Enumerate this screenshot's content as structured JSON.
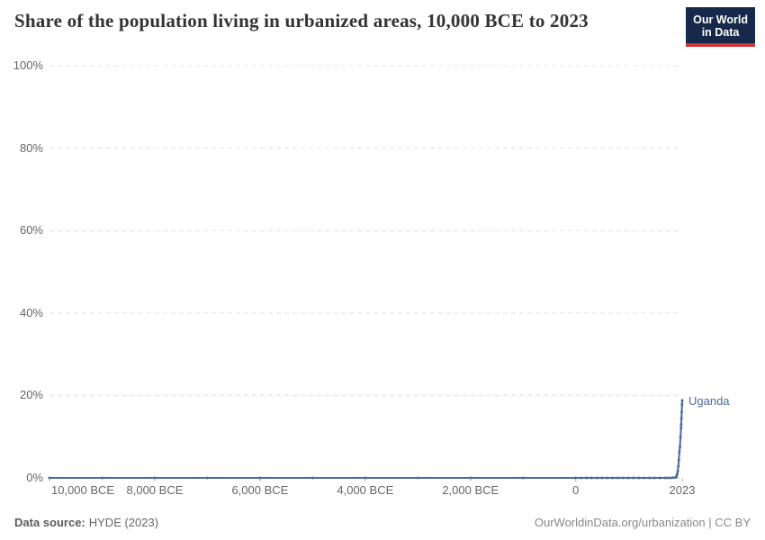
{
  "header": {
    "title": "Share of the population living in urbanized areas, 10,000 BCE to 2023",
    "logo_line1": "Our World",
    "logo_line2": "in Data"
  },
  "footer": {
    "source_label": "Data source:",
    "source_value": "HYDE (2023)",
    "credit": "OurWorldinData.org/urbanization | CC BY"
  },
  "colors": {
    "line": "#4C6A9C",
    "grid": "#e3e3e3",
    "zero_axis": "#bcbcbc",
    "tick": "#b8b8b8",
    "axis_text": "#666666",
    "title": "#333333",
    "logo_bg": "#17294a",
    "logo_red": "#cf3235"
  },
  "chart_data": {
    "type": "line",
    "title": "Share of the population living in urbanized areas, 10,000 BCE to 2023",
    "xlabel": "",
    "ylabel": "",
    "xlim": [
      -10000,
      2023
    ],
    "ylim": [
      0,
      100
    ],
    "grid": "horizontal-dashed",
    "legend_position": "end-of-line",
    "y_ticks": [
      {
        "value": 0,
        "label": "0%"
      },
      {
        "value": 20,
        "label": "20%"
      },
      {
        "value": 40,
        "label": "40%"
      },
      {
        "value": 60,
        "label": "60%"
      },
      {
        "value": 80,
        "label": "80%"
      },
      {
        "value": 100,
        "label": "100%"
      }
    ],
    "x_ticks": [
      {
        "value": -10000,
        "label": "10,000 BCE",
        "align": "left"
      },
      {
        "value": -8000,
        "label": "8,000 BCE",
        "align": "center"
      },
      {
        "value": -6000,
        "label": "6,000 BCE",
        "align": "center"
      },
      {
        "value": -4000,
        "label": "4,000 BCE",
        "align": "center"
      },
      {
        "value": -2000,
        "label": "2,000 BCE",
        "align": "center"
      },
      {
        "value": 0,
        "label": "0",
        "align": "center"
      },
      {
        "value": 2023,
        "label": "2023",
        "align": "center"
      }
    ],
    "series": [
      {
        "name": "Uganda",
        "color": "#4C6A9C",
        "points": [
          [
            -10000,
            0
          ],
          [
            -9000,
            0
          ],
          [
            -8000,
            0
          ],
          [
            -7000,
            0
          ],
          [
            -6000,
            0
          ],
          [
            -5000,
            0
          ],
          [
            -4000,
            0
          ],
          [
            -3000,
            0
          ],
          [
            -2000,
            0
          ],
          [
            -1000,
            0
          ],
          [
            0,
            0
          ],
          [
            100,
            0
          ],
          [
            200,
            0
          ],
          [
            300,
            0
          ],
          [
            400,
            0
          ],
          [
            500,
            0
          ],
          [
            600,
            0
          ],
          [
            700,
            0
          ],
          [
            800,
            0
          ],
          [
            900,
            0
          ],
          [
            1000,
            0
          ],
          [
            1100,
            0
          ],
          [
            1200,
            0
          ],
          [
            1300,
            0
          ],
          [
            1400,
            0
          ],
          [
            1500,
            0
          ],
          [
            1600,
            0
          ],
          [
            1700,
            0
          ],
          [
            1750,
            0
          ],
          [
            1800,
            0
          ],
          [
            1850,
            0.05
          ],
          [
            1900,
            0.1
          ],
          [
            1910,
            0.3
          ],
          [
            1920,
            0.6
          ],
          [
            1930,
            1.0
          ],
          [
            1940,
            1.7
          ],
          [
            1950,
            2.8
          ],
          [
            1960,
            4.4
          ],
          [
            1970,
            6.4
          ],
          [
            1980,
            7.5
          ],
          [
            1990,
            9.9
          ],
          [
            2000,
            12.1
          ],
          [
            2005,
            13.0
          ],
          [
            2010,
            14.5
          ],
          [
            2015,
            16.0
          ],
          [
            2020,
            17.8
          ],
          [
            2023,
            18.8
          ]
        ]
      }
    ]
  }
}
